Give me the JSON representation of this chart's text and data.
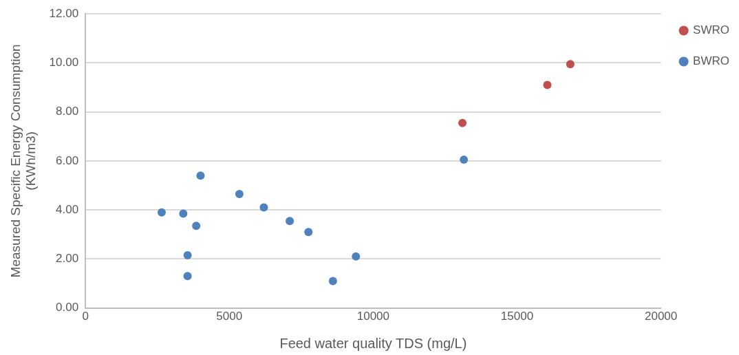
{
  "chart_data": {
    "type": "scatter",
    "xlabel": "Feed water quality TDS (mg/L)",
    "ylabel": "Measured Specific Energy Consumption\n(KWh/m3)",
    "xlim": [
      0,
      20000
    ],
    "xticks": [
      0,
      5000,
      10000,
      15000,
      20000
    ],
    "ylim": [
      0,
      12
    ],
    "yticks": [
      {
        "value": 0,
        "label": "0.00"
      },
      {
        "value": 2,
        "label": "2.00"
      },
      {
        "value": 4,
        "label": "4.00"
      },
      {
        "value": 6,
        "label": "6.00"
      },
      {
        "value": 8,
        "label": "8.00"
      },
      {
        "value": 10,
        "label": "10.00"
      },
      {
        "value": 12,
        "label": "12.00"
      }
    ],
    "grid": "y",
    "legend": "top right",
    "marker": "circle",
    "series": [
      {
        "name": "SWRO",
        "color": "#c0504d",
        "x": [
          13100,
          16050,
          16850
        ],
        "values": [
          7.55,
          9.1,
          9.95
        ]
      },
      {
        "name": "BWRO",
        "color": "#4f81bd",
        "x": [
          13150,
          2650,
          3400,
          4000,
          3850,
          3550,
          3550,
          5350,
          6200,
          7100,
          7750,
          8600,
          9400
        ],
        "values": [
          6.05,
          3.9,
          3.85,
          5.4,
          3.35,
          2.15,
          1.3,
          4.65,
          4.1,
          3.55,
          3.1,
          1.1,
          2.1
        ]
      }
    ]
  }
}
